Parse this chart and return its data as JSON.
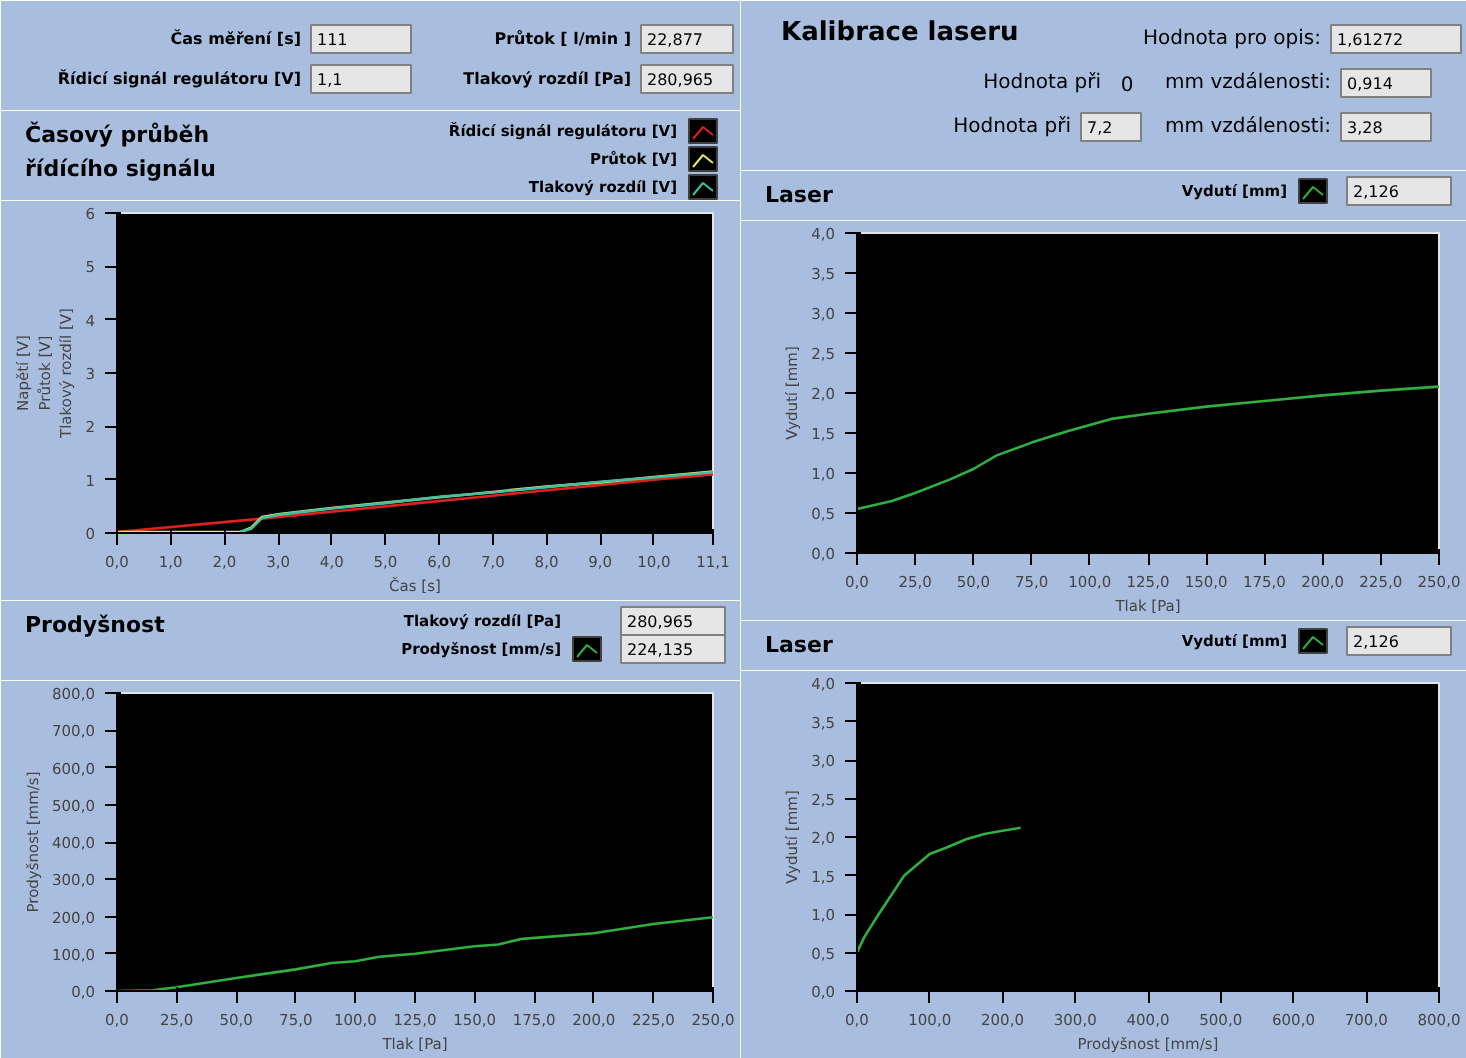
{
  "chart_data": [
    {
      "type": "other",
      "annotations": [
        "Čas měření [s]",
        "111",
        "Průtok [ l/min ]",
        "22,877",
        "Řídicí signál regulátoru [V]",
        "1,1",
        "Tlakový rozdíl [Pa]",
        "280,965"
      ]
    },
    {
      "type": "other",
      "title": "Kalibrace laseru",
      "annotations": [
        "Hodnota pro opis:",
        "1,61272",
        "Hodnota při",
        "0",
        "mm vzdálenosti:",
        "0,914",
        "Hodnota při",
        "7,2",
        "mm vzdálenosti:",
        "3,28"
      ]
    },
    {
      "type": "line",
      "title": "Časový průběh\nřídícího signálu",
      "xlabel": "Čas [s]",
      "ylabel": "Napětí [V]\nPrůtok [V]\nTlakový rozdíl [V]",
      "legend": "top right",
      "xlim": [
        0,
        11.1
      ],
      "ylim": [
        0,
        6
      ],
      "xticks": [
        {
          "value": 0,
          "label": "0,0"
        },
        {
          "value": 1,
          "label": "1,0"
        },
        {
          "value": 2,
          "label": "2,0"
        },
        {
          "value": 3,
          "label": "3,0"
        },
        {
          "value": 4,
          "label": "4,0"
        },
        {
          "value": 5,
          "label": "5,0"
        },
        {
          "value": 6,
          "label": "6,0"
        },
        {
          "value": 7,
          "label": "7,0"
        },
        {
          "value": 8,
          "label": "8,0"
        },
        {
          "value": 9,
          "label": "9,0"
        },
        {
          "value": 10,
          "label": "10,0"
        },
        {
          "value": 11.1,
          "label": "11,1"
        }
      ],
      "yticks": [
        0,
        1,
        2,
        3,
        4,
        5,
        6
      ],
      "series": [
        {
          "name": "Řídicí signál regulátoru [V]",
          "color": "#e02020",
          "x": [
            0,
            2.5,
            5,
            7.5,
            10,
            11.1
          ],
          "values": [
            0.02,
            0.25,
            0.5,
            0.75,
            1.0,
            1.1
          ]
        },
        {
          "name": "Průtok [V]",
          "color": "#e8e860",
          "x": [
            0,
            2.3,
            2.5,
            2.7,
            3,
            4,
            5,
            6,
            7,
            8,
            9,
            10,
            11.1
          ],
          "values": [
            0.02,
            0.02,
            0.1,
            0.3,
            0.35,
            0.47,
            0.57,
            0.67,
            0.77,
            0.87,
            0.95,
            1.05,
            1.15
          ]
        },
        {
          "name": "Tlakový rozdíl [V]",
          "color": "#40c0a0",
          "x": [
            2.3,
            2.5,
            2.7,
            3,
            4,
            5,
            6,
            7,
            8,
            9,
            10,
            11.1
          ],
          "values": [
            0.02,
            0.08,
            0.28,
            0.34,
            0.46,
            0.56,
            0.68,
            0.76,
            0.86,
            0.96,
            1.04,
            1.14
          ]
        }
      ]
    },
    {
      "type": "line",
      "title": "Laser",
      "xlabel": "Tlak [Pa]",
      "ylabel": "Vydutí [mm]",
      "legend": "top right",
      "annotations": [
        "2,126"
      ],
      "xlim": [
        0,
        250
      ],
      "ylim": [
        0,
        4
      ],
      "xticks": [
        {
          "value": 0,
          "label": "0,0"
        },
        {
          "value": 25,
          "label": "25,0"
        },
        {
          "value": 50,
          "label": "50,0"
        },
        {
          "value": 75,
          "label": "75,0"
        },
        {
          "value": 100,
          "label": "100,0"
        },
        {
          "value": 125,
          "label": "125,0"
        },
        {
          "value": 150,
          "label": "150,0"
        },
        {
          "value": 175,
          "label": "175,0"
        },
        {
          "value": 200,
          "label": "200,0"
        },
        {
          "value": 225,
          "label": "225,0"
        },
        {
          "value": 250,
          "label": "250,0"
        }
      ],
      "yticks": [
        {
          "value": 0,
          "label": "0,0"
        },
        {
          "value": 0.5,
          "label": "0,5"
        },
        {
          "value": 1,
          "label": "1,0"
        },
        {
          "value": 1.5,
          "label": "1,5"
        },
        {
          "value": 2,
          "label": "2,0"
        },
        {
          "value": 2.5,
          "label": "2,5"
        },
        {
          "value": 3,
          "label": "3,0"
        },
        {
          "value": 3.5,
          "label": "3,5"
        },
        {
          "value": 4,
          "label": "4,0"
        }
      ],
      "series": [
        {
          "name": "Vydutí [mm]",
          "color": "#30b040",
          "x": [
            0,
            15,
            25,
            40,
            50,
            60,
            75,
            90,
            100,
            110,
            125,
            150,
            175,
            200,
            225,
            250
          ],
          "values": [
            0.55,
            0.65,
            0.75,
            0.92,
            1.05,
            1.22,
            1.38,
            1.52,
            1.6,
            1.68,
            1.74,
            1.83,
            1.9,
            1.97,
            2.03,
            2.08
          ]
        }
      ]
    },
    {
      "type": "line",
      "title": "Prodyšnost",
      "xlabel": "Tlak [Pa]",
      "ylabel": "Prodyšnost [mm/s]",
      "legend": "top right",
      "annotations": [
        "Tlakový rozdíl [Pa]",
        "280,965",
        "224,135"
      ],
      "xlim": [
        0,
        250
      ],
      "ylim": [
        0,
        800
      ],
      "xticks": [
        {
          "value": 0,
          "label": "0,0"
        },
        {
          "value": 25,
          "label": "25,0"
        },
        {
          "value": 50,
          "label": "50,0"
        },
        {
          "value": 75,
          "label": "75,0"
        },
        {
          "value": 100,
          "label": "100,0"
        },
        {
          "value": 125,
          "label": "125,0"
        },
        {
          "value": 150,
          "label": "150,0"
        },
        {
          "value": 175,
          "label": "175,0"
        },
        {
          "value": 200,
          "label": "200,0"
        },
        {
          "value": 225,
          "label": "225,0"
        },
        {
          "value": 250,
          "label": "250,0"
        }
      ],
      "yticks": [
        {
          "value": 0,
          "label": "0,0"
        },
        {
          "value": 100,
          "label": "100,0"
        },
        {
          "value": 200,
          "label": "200,0"
        },
        {
          "value": 300,
          "label": "300,0"
        },
        {
          "value": 400,
          "label": "400,0"
        },
        {
          "value": 500,
          "label": "500,0"
        },
        {
          "value": 600,
          "label": "600,0"
        },
        {
          "value": 700,
          "label": "700,0"
        },
        {
          "value": 800,
          "label": "800,0"
        }
      ],
      "series": [
        {
          "name": "Prodyšnost [mm/s]",
          "color": "#30b040",
          "x": [
            0,
            15,
            25,
            50,
            75,
            90,
            100,
            110,
            125,
            150,
            160,
            170,
            200,
            225,
            250
          ],
          "values": [
            0,
            2,
            10,
            35,
            58,
            75,
            80,
            92,
            100,
            120,
            125,
            140,
            155,
            180,
            198
          ]
        }
      ]
    },
    {
      "type": "line",
      "title": "Laser",
      "xlabel": "Prodyšnost [mm/s]",
      "ylabel": "Vydutí [mm]",
      "legend": "top right",
      "annotations": [
        "2,126"
      ],
      "xlim": [
        0,
        800
      ],
      "ylim": [
        0,
        4
      ],
      "xticks": [
        {
          "value": 0,
          "label": "0,0"
        },
        {
          "value": 100,
          "label": "100,0"
        },
        {
          "value": 200,
          "label": "200,0"
        },
        {
          "value": 300,
          "label": "300,0"
        },
        {
          "value": 400,
          "label": "400,0"
        },
        {
          "value": 500,
          "label": "500,0"
        },
        {
          "value": 600,
          "label": "600,0"
        },
        {
          "value": 700,
          "label": "700,0"
        },
        {
          "value": 800,
          "label": "800,0"
        }
      ],
      "yticks": [
        {
          "value": 0,
          "label": "0,0"
        },
        {
          "value": 0.5,
          "label": "0,5"
        },
        {
          "value": 1,
          "label": "1,0"
        },
        {
          "value": 1.5,
          "label": "1,5"
        },
        {
          "value": 2,
          "label": "2,0"
        },
        {
          "value": 2.5,
          "label": "2,5"
        },
        {
          "value": 3,
          "label": "3,0"
        },
        {
          "value": 3.5,
          "label": "3,5"
        },
        {
          "value": 4,
          "label": "4,0"
        }
      ],
      "series": [
        {
          "name": "Vydutí [mm]",
          "color": "#30b040",
          "x": [
            0,
            10,
            30,
            65,
            80,
            100,
            125,
            150,
            175,
            200,
            225
          ],
          "values": [
            0.5,
            0.7,
            1.0,
            1.5,
            1.62,
            1.78,
            1.87,
            1.97,
            2.04,
            2.08,
            2.12
          ]
        }
      ]
    }
  ]
}
